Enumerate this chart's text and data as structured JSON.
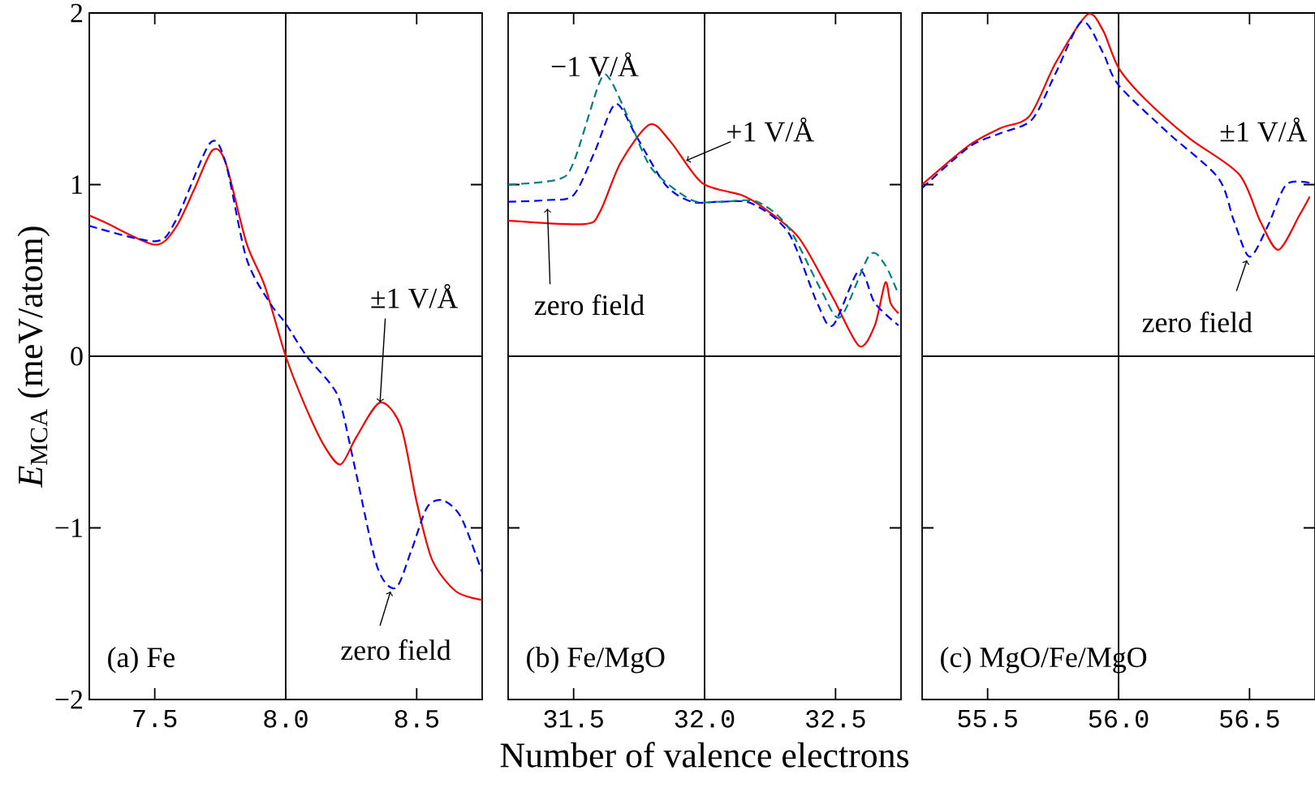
{
  "chart_data": [
    {
      "type": "line",
      "ylabel": "*E*$_{MCA}$ (meV/atom)",
      "xlim": [
        7.25,
        8.75
      ],
      "ylim": [
        -2,
        2
      ],
      "xticks": [
        {
          "value": 7.5,
          "label": "7.5"
        },
        {
          "value": 8.0,
          "label": "8.0"
        },
        {
          "value": 8.5,
          "label": "8.5"
        }
      ],
      "yticks": [
        {
          "value": -2,
          "label": "−2"
        },
        {
          "value": -1,
          "label": "−1"
        },
        0,
        1,
        2
      ],
      "ref_lines": [
        {
          "axis": "x",
          "value": 8.0,
          "color": "#000000"
        },
        {
          "axis": "y",
          "value": 0,
          "color": "#000000"
        }
      ],
      "annotations": [
        "(a) Fe",
        {
          "text": "±1 V/Å",
          "x": 8.36,
          "y": -0.27
        },
        {
          "text": "zero field",
          "x": 8.4,
          "y": -1.37
        }
      ],
      "series": [
        {
          "color": "#ff0000",
          "line_style": "solid",
          "x": [
            7.25,
            7.31,
            7.5,
            7.58,
            7.65,
            7.72,
            7.77,
            7.85,
            7.92,
            8.0,
            8.08,
            8.15,
            8.21,
            8.27,
            8.36,
            8.44,
            8.5,
            8.56,
            8.65,
            8.75
          ],
          "values": [
            0.82,
            0.78,
            0.65,
            0.75,
            0.97,
            1.2,
            1.13,
            0.66,
            0.41,
            0.0,
            -0.31,
            -0.53,
            -0.63,
            -0.47,
            -0.27,
            -0.41,
            -0.85,
            -1.19,
            -1.37,
            -1.42
          ]
        },
        {
          "color": "#0000ff",
          "line_style": "dashed",
          "x": [
            7.25,
            7.5,
            7.58,
            7.71,
            7.77,
            7.85,
            7.94,
            8.0,
            8.08,
            8.17,
            8.21,
            8.27,
            8.35,
            8.42,
            8.48,
            8.54,
            8.6,
            8.67,
            8.75
          ],
          "values": [
            0.76,
            0.67,
            0.79,
            1.24,
            1.13,
            0.57,
            0.31,
            0.19,
            0.0,
            -0.16,
            -0.28,
            -0.69,
            -1.23,
            -1.35,
            -1.13,
            -0.88,
            -0.84,
            -0.94,
            -1.26
          ]
        }
      ]
    },
    {
      "type": "line",
      "xlabel": "Number of valence electrons",
      "xlim": [
        31.25,
        32.75
      ],
      "ylim": [
        -2,
        2
      ],
      "tick_labels": "x",
      "xticks": [
        {
          "value": 31.5,
          "label": "31.5"
        },
        {
          "value": 32.0,
          "label": "32.0"
        },
        {
          "value": 32.5,
          "label": "32.5"
        }
      ],
      "yticks": [
        -2,
        -1,
        0,
        1,
        2
      ],
      "ref_lines": [
        {
          "axis": "x",
          "value": 32.0,
          "color": "#000000"
        },
        {
          "axis": "y",
          "value": 0,
          "color": "#000000"
        }
      ],
      "annotations": [
        "(b) Fe/MgO",
        "−1 V/Å",
        {
          "text": "+1 V/Å",
          "x": 31.93,
          "y": 1.14
        },
        {
          "text": "zero field",
          "x": 31.4,
          "y": 0.86
        }
      ],
      "series": [
        {
          "color": "#ff0000",
          "line_style": "solid",
          "x": [
            31.25,
            31.54,
            31.6,
            31.68,
            31.79,
            31.87,
            31.99,
            32.14,
            32.22,
            32.36,
            32.49,
            32.59,
            32.65,
            32.69,
            32.71,
            32.74
          ],
          "values": [
            0.79,
            0.77,
            0.84,
            1.13,
            1.35,
            1.25,
            1.01,
            0.94,
            0.87,
            0.69,
            0.34,
            0.06,
            0.18,
            0.43,
            0.31,
            0.25
          ]
        },
        {
          "color": "#0000ff",
          "line_style": "dashed",
          "x": [
            31.25,
            31.4,
            31.5,
            31.58,
            31.66,
            31.74,
            31.85,
            31.95,
            32.06,
            32.18,
            32.32,
            32.43,
            32.49,
            32.59,
            32.65,
            32.74
          ],
          "values": [
            0.9,
            0.91,
            0.94,
            1.19,
            1.47,
            1.28,
            1.0,
            0.9,
            0.9,
            0.89,
            0.72,
            0.31,
            0.18,
            0.5,
            0.31,
            0.18
          ]
        },
        {
          "color": "#008080",
          "line_style": "dashed",
          "x": [
            31.25,
            31.44,
            31.5,
            31.6,
            31.64,
            31.72,
            31.8,
            31.95,
            32.06,
            32.2,
            32.32,
            32.45,
            32.52,
            32.63,
            32.69,
            32.74
          ],
          "values": [
            1.0,
            1.03,
            1.13,
            1.6,
            1.61,
            1.35,
            1.09,
            0.91,
            0.9,
            0.9,
            0.75,
            0.37,
            0.23,
            0.59,
            0.53,
            0.36
          ]
        }
      ]
    },
    {
      "type": "line",
      "xlim": [
        55.25,
        56.75
      ],
      "ylim": [
        -2,
        2
      ],
      "tick_labels": "x",
      "xticks": [
        {
          "value": 55.5,
          "label": "55.5"
        },
        {
          "value": 56.0,
          "label": "56.0"
        },
        {
          "value": 56.5,
          "label": "56.5"
        }
      ],
      "yticks": [
        -2,
        -1,
        0,
        1,
        2
      ],
      "ref_lines": [
        {
          "axis": "x",
          "value": 56.0,
          "color": "#000000"
        },
        {
          "axis": "y",
          "value": 0,
          "color": "#000000"
        }
      ],
      "annotations": [
        "(c) MgO/Fe/MgO",
        "±1 V/Å",
        {
          "text": "zero field",
          "x": 56.49,
          "y": 0.56
        }
      ],
      "series": [
        {
          "color": "#ff0000",
          "line_style": "solid",
          "x": [
            55.25,
            55.43,
            55.55,
            55.66,
            55.76,
            55.88,
            55.94,
            56.0,
            56.1,
            56.27,
            56.46,
            56.54,
            56.61,
            56.69,
            56.73
          ],
          "values": [
            1.0,
            1.23,
            1.33,
            1.4,
            1.71,
            1.99,
            1.9,
            1.68,
            1.5,
            1.27,
            1.06,
            0.79,
            0.62,
            0.82,
            0.93
          ]
        },
        {
          "color": "#0000ff",
          "line_style": "dashed",
          "x": [
            55.25,
            55.43,
            55.55,
            55.67,
            55.76,
            55.86,
            55.94,
            56.0,
            56.19,
            56.38,
            56.44,
            56.5,
            56.57,
            56.64,
            56.73
          ],
          "values": [
            0.98,
            1.22,
            1.3,
            1.38,
            1.65,
            1.95,
            1.77,
            1.58,
            1.3,
            1.04,
            0.79,
            0.58,
            0.76,
            1.0,
            1.01
          ]
        }
      ]
    }
  ]
}
